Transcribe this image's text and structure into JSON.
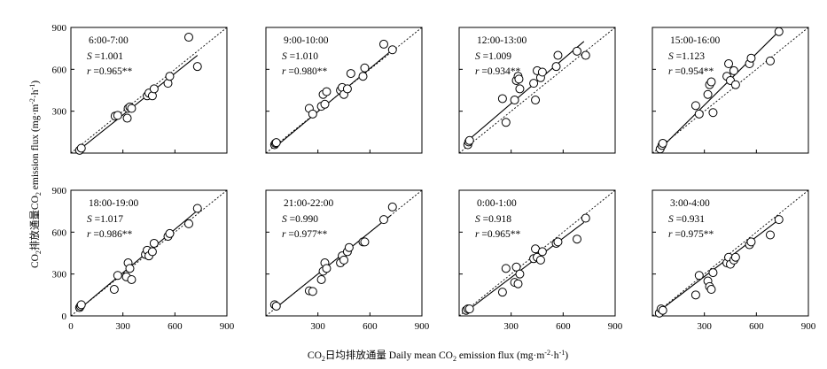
{
  "chart_data": {
    "type": "scatter",
    "layout": {
      "rows": 2,
      "cols": 4
    },
    "ylabel": {
      "cn": "排放通量",
      "en_pre": "emission flux (mg·m",
      "en_mid": "·h",
      "en_post": ")"
    },
    "xlabel": {
      "cn": "日均排放通量",
      "en_pre": "Daily mean ",
      "en_mid": " emission flux (mg·m",
      "en_mid2": "·h",
      "en_post": ")"
    },
    "xlim": [
      0,
      900
    ],
    "ylim": [
      0,
      900
    ],
    "yticks_top": [
      "300",
      "600",
      "900"
    ],
    "yticks_bottom": [
      "0",
      "300",
      "600",
      "900"
    ],
    "xticks_first": [
      "0",
      "300",
      "600",
      "900"
    ],
    "xticks_other": [
      "300",
      "600",
      "900"
    ],
    "panels": [
      {
        "time": "6:00-7:00",
        "S": "=1.001",
        "r": "=0.965**",
        "fit": [
          [
            60,
            35
          ],
          [
            730,
            700
          ]
        ],
        "points": [
          [
            50,
            20
          ],
          [
            60,
            35
          ],
          [
            255,
            265
          ],
          [
            270,
            270
          ],
          [
            325,
            250
          ],
          [
            330,
            320
          ],
          [
            340,
            330
          ],
          [
            350,
            320
          ],
          [
            440,
            410
          ],
          [
            450,
            430
          ],
          [
            470,
            410
          ],
          [
            480,
            460
          ],
          [
            560,
            500
          ],
          [
            570,
            550
          ],
          [
            680,
            830
          ],
          [
            730,
            620
          ]
        ]
      },
      {
        "time": "9:00-10:00",
        "S": "=1.010",
        "r": "=0.980**",
        "fit": [
          [
            55,
            45
          ],
          [
            730,
            740
          ]
        ],
        "points": [
          [
            50,
            60
          ],
          [
            55,
            70
          ],
          [
            60,
            75
          ],
          [
            250,
            320
          ],
          [
            270,
            280
          ],
          [
            320,
            335
          ],
          [
            330,
            420
          ],
          [
            340,
            350
          ],
          [
            350,
            440
          ],
          [
            430,
            450
          ],
          [
            440,
            470
          ],
          [
            450,
            420
          ],
          [
            470,
            460
          ],
          [
            490,
            570
          ],
          [
            560,
            550
          ],
          [
            570,
            610
          ],
          [
            680,
            780
          ],
          [
            730,
            740
          ]
        ]
      },
      {
        "time": "12:00-13:00",
        "S": "=1.009",
        "r": "=0.934**",
        "fit": [
          [
            50,
            90
          ],
          [
            720,
            800
          ]
        ],
        "points": [
          [
            50,
            60
          ],
          [
            55,
            80
          ],
          [
            60,
            90
          ],
          [
            250,
            390
          ],
          [
            270,
            220
          ],
          [
            320,
            380
          ],
          [
            330,
            520
          ],
          [
            340,
            550
          ],
          [
            345,
            530
          ],
          [
            350,
            460
          ],
          [
            430,
            500
          ],
          [
            440,
            380
          ],
          [
            450,
            590
          ],
          [
            470,
            540
          ],
          [
            480,
            580
          ],
          [
            560,
            620
          ],
          [
            570,
            700
          ],
          [
            680,
            730
          ],
          [
            730,
            700
          ]
        ]
      },
      {
        "time": "15:00-16:00",
        "S": "=1.123",
        "r": "=0.954**",
        "fit": [
          [
            45,
            30
          ],
          [
            720,
            860
          ]
        ],
        "points": [
          [
            45,
            30
          ],
          [
            55,
            55
          ],
          [
            60,
            70
          ],
          [
            250,
            340
          ],
          [
            270,
            280
          ],
          [
            320,
            420
          ],
          [
            330,
            490
          ],
          [
            340,
            510
          ],
          [
            350,
            290
          ],
          [
            430,
            550
          ],
          [
            440,
            640
          ],
          [
            450,
            520
          ],
          [
            470,
            590
          ],
          [
            480,
            490
          ],
          [
            560,
            640
          ],
          [
            570,
            680
          ],
          [
            680,
            660
          ],
          [
            730,
            870
          ]
        ]
      },
      {
        "time": "18:00-19:00",
        "S": "=1.017",
        "r": "=0.986**",
        "fit": [
          [
            50,
            50
          ],
          [
            730,
            755
          ]
        ],
        "points": [
          [
            50,
            60
          ],
          [
            55,
            70
          ],
          [
            60,
            80
          ],
          [
            250,
            190
          ],
          [
            270,
            290
          ],
          [
            320,
            280
          ],
          [
            330,
            380
          ],
          [
            340,
            340
          ],
          [
            350,
            260
          ],
          [
            430,
            440
          ],
          [
            440,
            470
          ],
          [
            450,
            430
          ],
          [
            470,
            460
          ],
          [
            480,
            520
          ],
          [
            560,
            570
          ],
          [
            570,
            590
          ],
          [
            680,
            660
          ],
          [
            730,
            770
          ]
        ]
      },
      {
        "time": "21:00-22:00",
        "S": "=0.990",
        "r": "=0.977**",
        "fit": [
          [
            50,
            50
          ],
          [
            720,
            720
          ]
        ],
        "points": [
          [
            50,
            80
          ],
          [
            60,
            70
          ],
          [
            250,
            180
          ],
          [
            270,
            175
          ],
          [
            320,
            260
          ],
          [
            330,
            320
          ],
          [
            340,
            380
          ],
          [
            350,
            340
          ],
          [
            430,
            380
          ],
          [
            440,
            430
          ],
          [
            450,
            400
          ],
          [
            470,
            460
          ],
          [
            480,
            490
          ],
          [
            560,
            530
          ],
          [
            570,
            530
          ],
          [
            680,
            690
          ],
          [
            730,
            780
          ]
        ]
      },
      {
        "time": "0:00-1:00",
        "S": "=0.918",
        "r": "=0.965**",
        "fit": [
          [
            50,
            40
          ],
          [
            720,
            670
          ]
        ],
        "points": [
          [
            40,
            40
          ],
          [
            50,
            50
          ],
          [
            60,
            50
          ],
          [
            250,
            170
          ],
          [
            270,
            340
          ],
          [
            320,
            240
          ],
          [
            330,
            350
          ],
          [
            340,
            230
          ],
          [
            350,
            300
          ],
          [
            430,
            410
          ],
          [
            440,
            480
          ],
          [
            450,
            420
          ],
          [
            470,
            400
          ],
          [
            480,
            460
          ],
          [
            560,
            520
          ],
          [
            570,
            530
          ],
          [
            680,
            550
          ],
          [
            730,
            700
          ]
        ]
      },
      {
        "time": "3:00-4:00",
        "S": "=0.931",
        "r": "=0.975**",
        "fit": [
          [
            50,
            45
          ],
          [
            720,
            680
          ]
        ],
        "points": [
          [
            40,
            20
          ],
          [
            50,
            50
          ],
          [
            60,
            40
          ],
          [
            250,
            150
          ],
          [
            270,
            290
          ],
          [
            320,
            250
          ],
          [
            330,
            210
          ],
          [
            340,
            190
          ],
          [
            350,
            310
          ],
          [
            430,
            380
          ],
          [
            440,
            420
          ],
          [
            450,
            370
          ],
          [
            470,
            400
          ],
          [
            480,
            420
          ],
          [
            560,
            510
          ],
          [
            570,
            530
          ],
          [
            680,
            580
          ],
          [
            730,
            690
          ]
        ]
      }
    ]
  }
}
